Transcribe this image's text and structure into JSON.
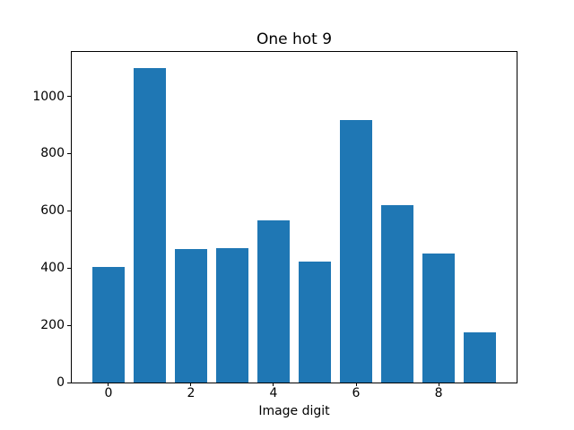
{
  "chart_data": {
    "type": "bar",
    "title": "One hot 9",
    "xlabel": "Image digit",
    "ylabel": "",
    "categories": [
      0,
      1,
      2,
      3,
      4,
      5,
      6,
      7,
      8,
      9
    ],
    "values": [
      403,
      1100,
      466,
      470,
      568,
      422,
      916,
      620,
      450,
      175
    ],
    "bar_width": 0.8,
    "bar_color": "#1f77b4",
    "background_color": "#ffffff",
    "spine_color": "#000000",
    "text_color": "#000000",
    "xlim": [
      -0.89,
      9.89
    ],
    "ylim": [
      0,
      1155
    ],
    "xtick_values": [
      0,
      2,
      4,
      6,
      8
    ],
    "ytick_values": [
      0,
      200,
      400,
      600,
      800,
      1000
    ],
    "grid": false,
    "legend": "none"
  }
}
